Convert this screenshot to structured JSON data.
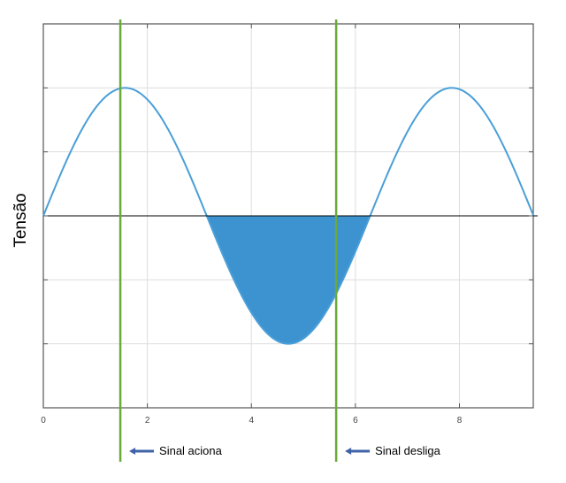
{
  "chart_data": {
    "type": "line",
    "title": "",
    "xlabel": "",
    "ylabel": "Tensão",
    "xlim": [
      0,
      9.42
    ],
    "ylim": [
      -1.5,
      1.5
    ],
    "x_ticks": [
      0,
      2,
      4,
      6,
      8
    ],
    "x_tick_labels": [
      "0",
      "2",
      "4",
      "6",
      "8"
    ],
    "y_ticks": [
      -1.5,
      -1.0,
      -0.5,
      0,
      0.5,
      1.0,
      1.5
    ],
    "grid": true,
    "series": [
      {
        "function": "sin",
        "x": [
          0,
          0.5,
          1.0,
          1.5708,
          2.0,
          2.5,
          3.1416,
          3.5,
          4.0,
          4.7124,
          5.5,
          6.2832,
          7.0,
          7.854,
          8.5,
          9.4248
        ],
        "y": [
          0,
          0.479,
          0.841,
          1.0,
          0.909,
          0.598,
          0,
          -0.351,
          -0.757,
          -1.0,
          -0.706,
          0,
          0.657,
          1.0,
          0.798,
          0
        ],
        "color": "#4a9fd8"
      }
    ],
    "shaded_region": {
      "x_start": 3.1416,
      "x_end": 6.2832,
      "description": "area between the curve and y = 0 where the curve is negative",
      "color": "#3d93d0"
    },
    "vertical_markers": [
      {
        "x": 1.48,
        "color": "#6aaa3a",
        "label": "Sinal aciona"
      },
      {
        "x": 5.63,
        "color": "#6aaa3a",
        "label": "Sinal desliga"
      }
    ],
    "annotation_arrow_color": "#3f62a8"
  }
}
